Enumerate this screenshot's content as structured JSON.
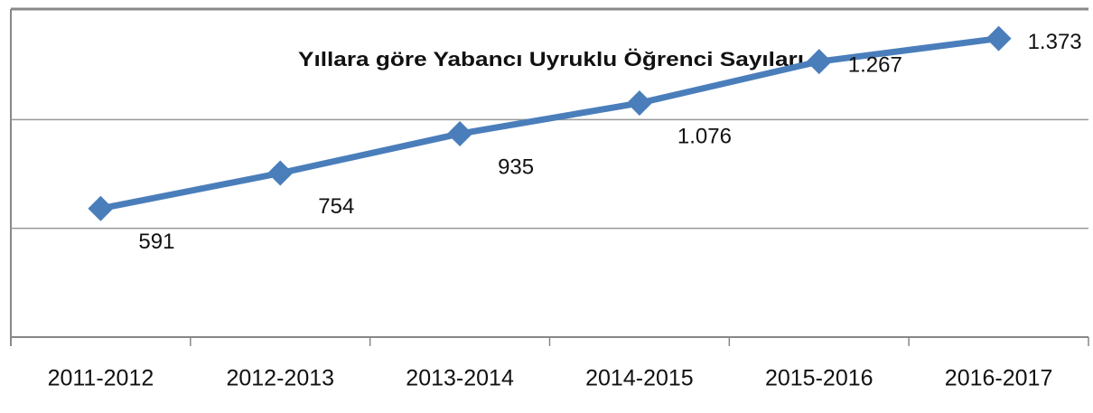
{
  "chart_data": {
    "type": "line",
    "title": "Yıllara göre Yabancı Uyruklu Öğrenci Sayıları",
    "categories": [
      "2011-2012",
      "2012-2013",
      "2013-2014",
      "2014-2015",
      "2015-2016",
      "2016-2017"
    ],
    "values": [
      591,
      754,
      935,
      1076,
      1267,
      1373
    ],
    "value_labels": [
      "591",
      "754",
      "935",
      "1.076",
      "1.267",
      "1.373"
    ],
    "color": "#4a7ebb",
    "ylim": [
      0,
      1500
    ],
    "yticks": [
      0,
      500,
      1000,
      1500
    ],
    "grid": true
  }
}
